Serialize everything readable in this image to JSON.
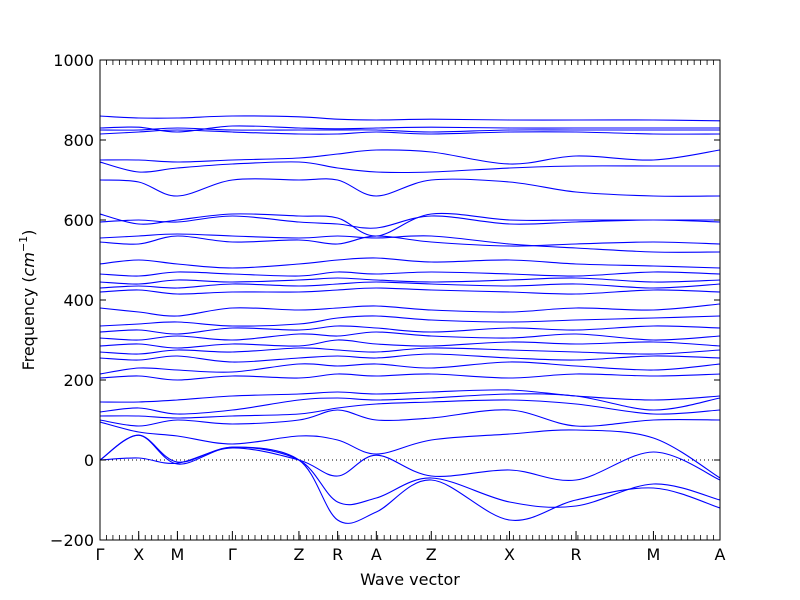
{
  "chart_data": {
    "type": "line",
    "title": "",
    "xlabel": "Wave vector",
    "ylabel_text": "Frequency (",
    "ylabel_unit_base": "cm",
    "ylabel_unit_exp": "−1",
    "ylabel_close": ")",
    "ylim": [
      -200,
      1000
    ],
    "yticks": [
      -200,
      0,
      200,
      400,
      600,
      800,
      1000
    ],
    "zero_line": "dotted",
    "grid": false,
    "line_color": "#0000ff",
    "high_symmetry_points": [
      {
        "label": "Γ",
        "x": 0.0
      },
      {
        "label": "X",
        "x": 0.5
      },
      {
        "label": "M",
        "x": 1.0
      },
      {
        "label": "Γ",
        "x": 1.71
      },
      {
        "label": "Z",
        "x": 2.57
      },
      {
        "label": "R",
        "x": 3.07
      },
      {
        "label": "A",
        "x": 3.57
      },
      {
        "label": "Z",
        "x": 4.28
      },
      {
        "label": "X",
        "x": 5.29
      },
      {
        "label": "R",
        "x": 6.15
      },
      {
        "label": "M",
        "x": 7.15
      },
      {
        "label": "A",
        "x": 8.01
      }
    ],
    "series": [
      {
        "values": [
          0,
          62,
          -5,
          32,
          0,
          -150,
          -130,
          -50,
          -150,
          -100,
          -70,
          -120
        ]
      },
      {
        "values": [
          0,
          62,
          -10,
          32,
          0,
          -105,
          -95,
          -45,
          -105,
          -115,
          -60,
          -100
        ]
      },
      {
        "values": [
          0,
          5,
          -8,
          30,
          0,
          -40,
          12,
          -40,
          -25,
          -50,
          20,
          -50
        ]
      },
      {
        "values": [
          95,
          70,
          60,
          40,
          60,
          50,
          15,
          50,
          65,
          75,
          55,
          -45
        ]
      },
      {
        "values": [
          100,
          85,
          100,
          90,
          100,
          125,
          100,
          105,
          125,
          85,
          100,
          100
        ]
      },
      {
        "values": [
          110,
          110,
          105,
          110,
          115,
          130,
          140,
          145,
          150,
          140,
          115,
          125
        ]
      },
      {
        "values": [
          120,
          130,
          115,
          125,
          150,
          155,
          150,
          155,
          165,
          160,
          125,
          155
        ]
      },
      {
        "values": [
          145,
          145,
          150,
          160,
          165,
          170,
          165,
          170,
          175,
          160,
          150,
          160
        ]
      },
      {
        "values": [
          205,
          210,
          200,
          210,
          205,
          215,
          210,
          215,
          205,
          215,
          210,
          215
        ]
      },
      {
        "values": [
          215,
          230,
          225,
          220,
          240,
          235,
          240,
          230,
          245,
          235,
          225,
          240
        ]
      },
      {
        "values": [
          255,
          250,
          260,
          245,
          255,
          260,
          255,
          265,
          255,
          250,
          260,
          255
        ]
      },
      {
        "values": [
          270,
          265,
          275,
          270,
          280,
          275,
          270,
          280,
          275,
          270,
          265,
          275
        ]
      },
      {
        "values": [
          285,
          290,
          280,
          290,
          285,
          300,
          290,
          285,
          295,
          290,
          295,
          285
        ]
      },
      {
        "values": [
          305,
          300,
          310,
          300,
          315,
          310,
          320,
          310,
          305,
          315,
          300,
          310
        ]
      },
      {
        "values": [
          320,
          325,
          315,
          330,
          325,
          335,
          330,
          320,
          330,
          325,
          335,
          330
        ]
      },
      {
        "values": [
          335,
          340,
          345,
          335,
          340,
          355,
          360,
          350,
          345,
          350,
          355,
          360
        ]
      },
      {
        "values": [
          380,
          370,
          360,
          380,
          375,
          380,
          385,
          375,
          370,
          380,
          375,
          390
        ]
      },
      {
        "values": [
          420,
          425,
          415,
          420,
          420,
          425,
          430,
          425,
          420,
          415,
          425,
          420
        ]
      },
      {
        "values": [
          430,
          435,
          430,
          440,
          435,
          440,
          445,
          440,
          435,
          440,
          430,
          440
        ]
      },
      {
        "values": [
          445,
          440,
          450,
          445,
          450,
          455,
          450,
          445,
          450,
          455,
          445,
          450
        ]
      },
      {
        "values": [
          465,
          460,
          470,
          465,
          460,
          470,
          465,
          470,
          465,
          460,
          470,
          465
        ]
      },
      {
        "values": [
          490,
          500,
          490,
          480,
          490,
          500,
          505,
          495,
          500,
          490,
          485,
          480
        ]
      },
      {
        "values": [
          545,
          540,
          560,
          545,
          550,
          540,
          560,
          545,
          535,
          540,
          545,
          540
        ]
      },
      {
        "values": [
          555,
          560,
          565,
          560,
          555,
          560,
          555,
          560,
          540,
          530,
          520,
          520
        ]
      },
      {
        "values": [
          595,
          600,
          595,
          610,
          595,
          590,
          580,
          610,
          590,
          595,
          600,
          595
        ]
      },
      {
        "values": [
          615,
          590,
          600,
          615,
          610,
          605,
          560,
          615,
          600,
          600,
          600,
          600
        ]
      },
      {
        "values": [
          700,
          695,
          660,
          700,
          700,
          700,
          660,
          700,
          695,
          670,
          660,
          660
        ]
      },
      {
        "values": [
          745,
          720,
          730,
          740,
          745,
          730,
          720,
          720,
          730,
          735,
          735,
          735
        ]
      },
      {
        "values": [
          750,
          750,
          745,
          750,
          755,
          765,
          775,
          770,
          740,
          760,
          750,
          775
        ]
      },
      {
        "values": [
          815,
          820,
          825,
          820,
          815,
          815,
          820,
          815,
          820,
          820,
          815,
          815
        ]
      },
      {
        "values": [
          825,
          825,
          830,
          825,
          825,
          825,
          825,
          820,
          825,
          825,
          825,
          825
        ]
      },
      {
        "values": [
          830,
          832,
          820,
          835,
          830,
          828,
          830,
          832,
          830,
          830,
          830,
          830
        ]
      },
      {
        "values": [
          860,
          855,
          855,
          860,
          858,
          852,
          850,
          852,
          850,
          850,
          850,
          848
        ]
      }
    ]
  }
}
